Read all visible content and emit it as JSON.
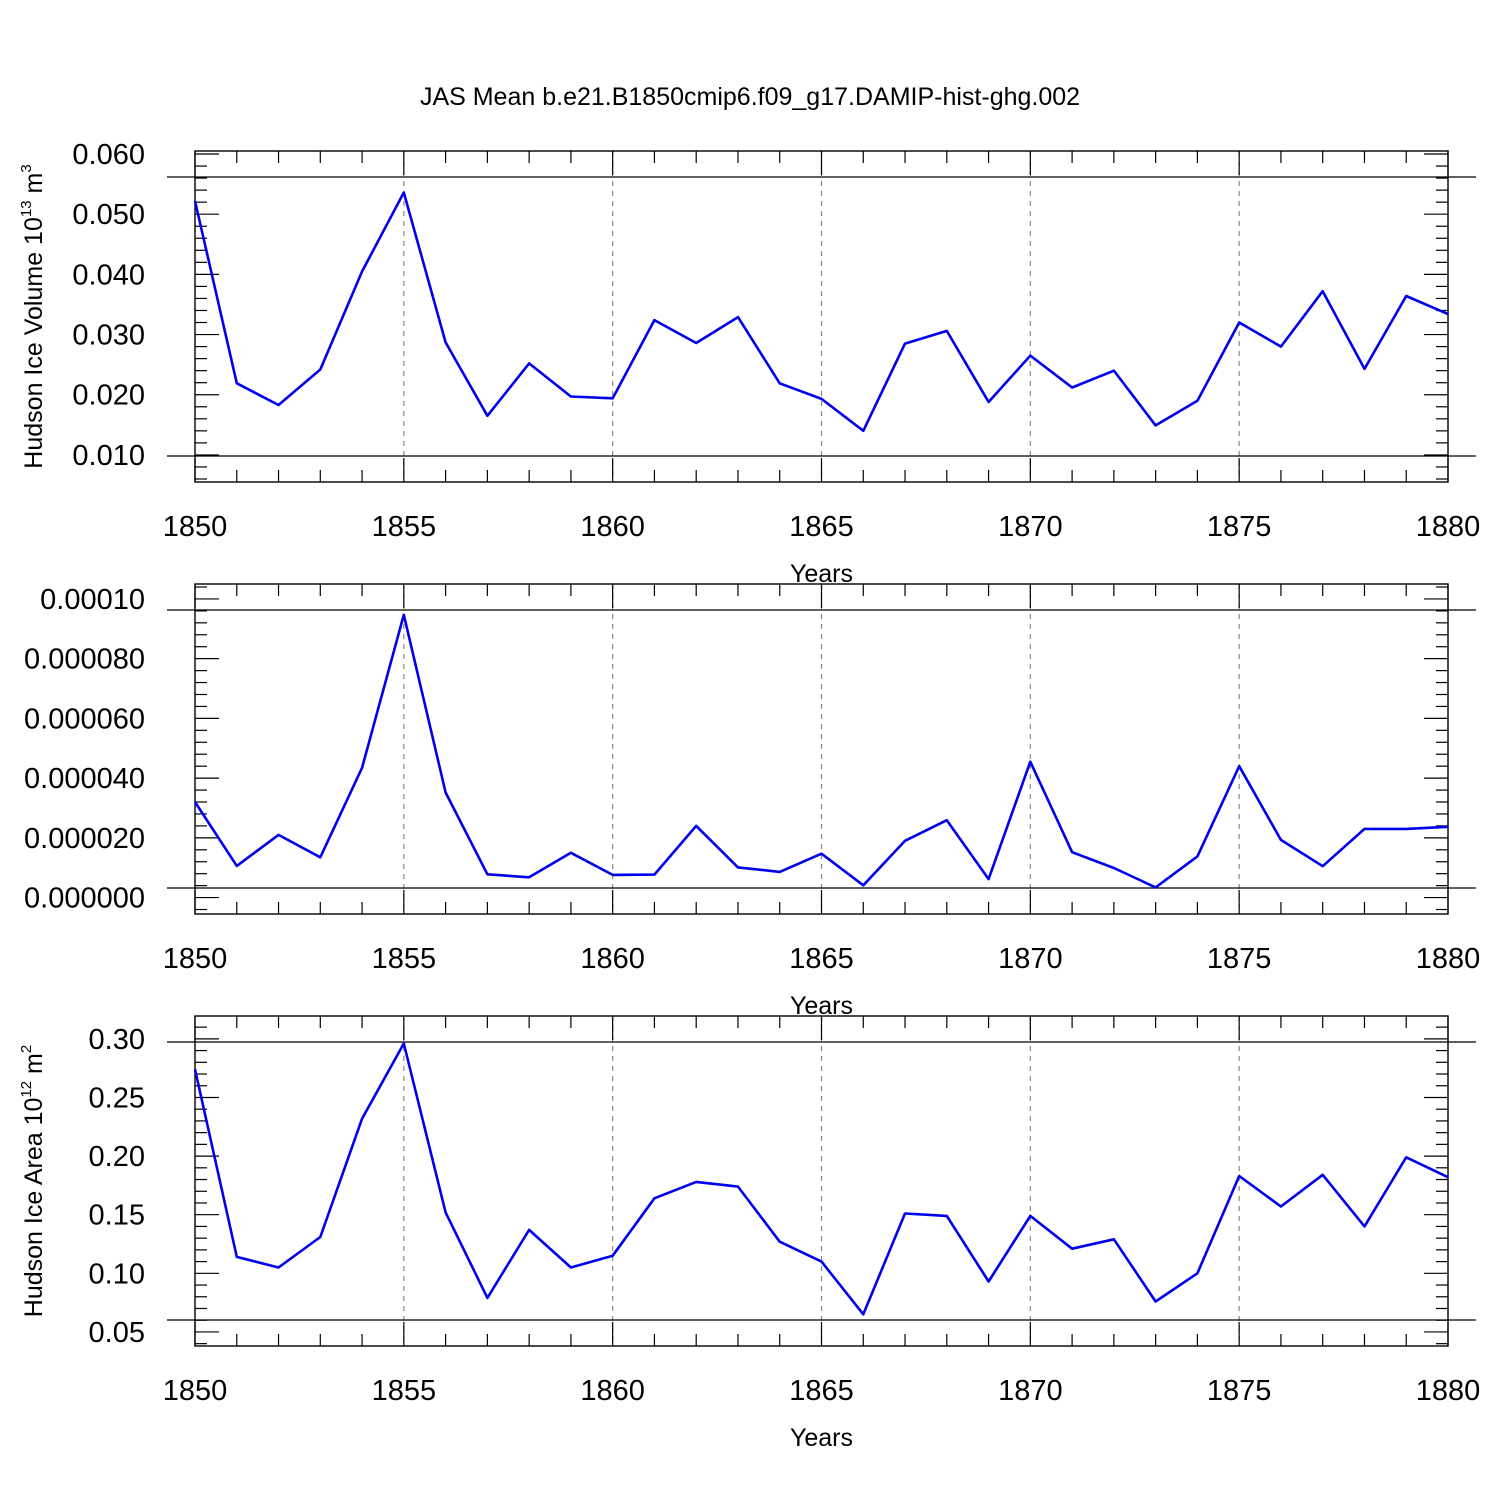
{
  "title": "JAS Mean b.e21.B1850cmip6.f09_g17.DAMIP-hist-ghg.002",
  "colors": {
    "line": "#0000ee",
    "axis": "#000000",
    "grid": "#888888"
  },
  "chart_data": [
    {
      "type": "line",
      "xlabel": "Years",
      "ylabel": {
        "text": "Hudson Ice Volume 10",
        "sup": "13",
        "unit": " m",
        "unit_sup": "3"
      },
      "xlim": [
        1850,
        1880
      ],
      "ylim": [
        0.0055,
        0.0605
      ],
      "xticks": [
        1850,
        1855,
        1860,
        1865,
        1870,
        1875,
        1880
      ],
      "xtick_labels": [
        "1850",
        "1855",
        "1860",
        "1865",
        "1870",
        "1875",
        "1880"
      ],
      "yticks": [
        0.01,
        0.02,
        0.03,
        0.04,
        0.05,
        0.06
      ],
      "ytick_labels": [
        "0.010",
        "0.020",
        "0.030",
        "0.040",
        "0.050",
        "0.060"
      ],
      "grid": "vertical-dashed",
      "x": [
        1850,
        1851,
        1852,
        1853,
        1854,
        1855,
        1856,
        1857,
        1858,
        1859,
        1860,
        1861,
        1862,
        1863,
        1864,
        1865,
        1866,
        1867,
        1868,
        1869,
        1870,
        1871,
        1872,
        1873,
        1874,
        1875,
        1876,
        1877,
        1878,
        1879,
        1880
      ],
      "values": [
        0.0522,
        0.0219,
        0.0183,
        0.0242,
        0.0405,
        0.0536,
        0.0287,
        0.0165,
        0.0252,
        0.0197,
        0.0194,
        0.0324,
        0.0286,
        0.0329,
        0.0219,
        0.0193,
        0.014,
        0.0285,
        0.0306,
        0.0188,
        0.0265,
        0.0212,
        0.024,
        0.0149,
        0.019,
        0.032,
        0.028,
        0.0372,
        0.0243,
        0.0364,
        0.0334
      ]
    },
    {
      "type": "line",
      "xlabel": "Years",
      "ylabel": {
        "text": "",
        "sup": "",
        "unit": "",
        "unit_sup": ""
      },
      "xlim": [
        1850,
        1880
      ],
      "ylim": [
        -5.5e-06,
        0.000105
      ],
      "xticks": [
        1850,
        1855,
        1860,
        1865,
        1870,
        1875,
        1880
      ],
      "xtick_labels": [
        "1850",
        "1855",
        "1860",
        "1865",
        "1870",
        "1875",
        "1880"
      ],
      "yticks": [
        0,
        2e-05,
        4e-05,
        6e-05,
        8e-05,
        0.0001
      ],
      "ytick_labels": [
        "0.000000",
        "0.000020",
        "0.000040",
        "0.000060",
        "0.000080",
        "0.00010"
      ],
      "grid": "vertical-dashed",
      "x": [
        1850,
        1851,
        1852,
        1853,
        1854,
        1855,
        1856,
        1857,
        1858,
        1859,
        1860,
        1861,
        1862,
        1863,
        1864,
        1865,
        1866,
        1867,
        1868,
        1869,
        1870,
        1871,
        1872,
        1873,
        1874,
        1875,
        1876,
        1877,
        1878,
        1879,
        1880
      ],
      "values": [
        3.2e-05,
        1.06e-05,
        2.1e-05,
        1.35e-05,
        4.35e-05,
        9.47e-05,
        3.52e-05,
        7.8e-06,
        6.8e-06,
        1.5e-05,
        7.6e-06,
        7.7e-06,
        2.4e-05,
        1.01e-05,
        8.6e-06,
        1.47e-05,
        4.1e-06,
        1.9e-05,
        2.59e-05,
        6.2e-06,
        4.55e-05,
        1.52e-05,
        9.9e-06,
        3.4e-06,
        1.38e-05,
        4.4e-05,
        1.93e-05,
        1.05e-05,
        2.3e-05,
        2.3e-05,
        2.37e-05
      ]
    },
    {
      "type": "line",
      "xlabel": "Years",
      "ylabel": {
        "text": "Hudson Ice Area 10",
        "sup": "12",
        "unit": " m",
        "unit_sup": "2"
      },
      "xlim": [
        1850,
        1880
      ],
      "ylim": [
        0.038,
        0.3195
      ],
      "xticks": [
        1850,
        1855,
        1860,
        1865,
        1870,
        1875,
        1880
      ],
      "xtick_labels": [
        "1850",
        "1855",
        "1860",
        "1865",
        "1870",
        "1875",
        "1880"
      ],
      "yticks": [
        0.05,
        0.1,
        0.15,
        0.2,
        0.25,
        0.3
      ],
      "ytick_labels": [
        "0.05",
        "0.10",
        "0.15",
        "0.20",
        "0.25",
        "0.30"
      ],
      "grid": "vertical-dashed",
      "x": [
        1850,
        1851,
        1852,
        1853,
        1854,
        1855,
        1856,
        1857,
        1858,
        1859,
        1860,
        1861,
        1862,
        1863,
        1864,
        1865,
        1866,
        1867,
        1868,
        1869,
        1870,
        1871,
        1872,
        1873,
        1874,
        1875,
        1876,
        1877,
        1878,
        1879,
        1880
      ],
      "values": [
        0.274,
        0.114,
        0.105,
        0.131,
        0.232,
        0.296,
        0.152,
        0.079,
        0.137,
        0.105,
        0.115,
        0.164,
        0.178,
        0.174,
        0.127,
        0.11,
        0.065,
        0.151,
        0.149,
        0.093,
        0.149,
        0.121,
        0.129,
        0.076,
        0.1,
        0.183,
        0.157,
        0.184,
        0.14,
        0.199,
        0.182
      ]
    }
  ]
}
